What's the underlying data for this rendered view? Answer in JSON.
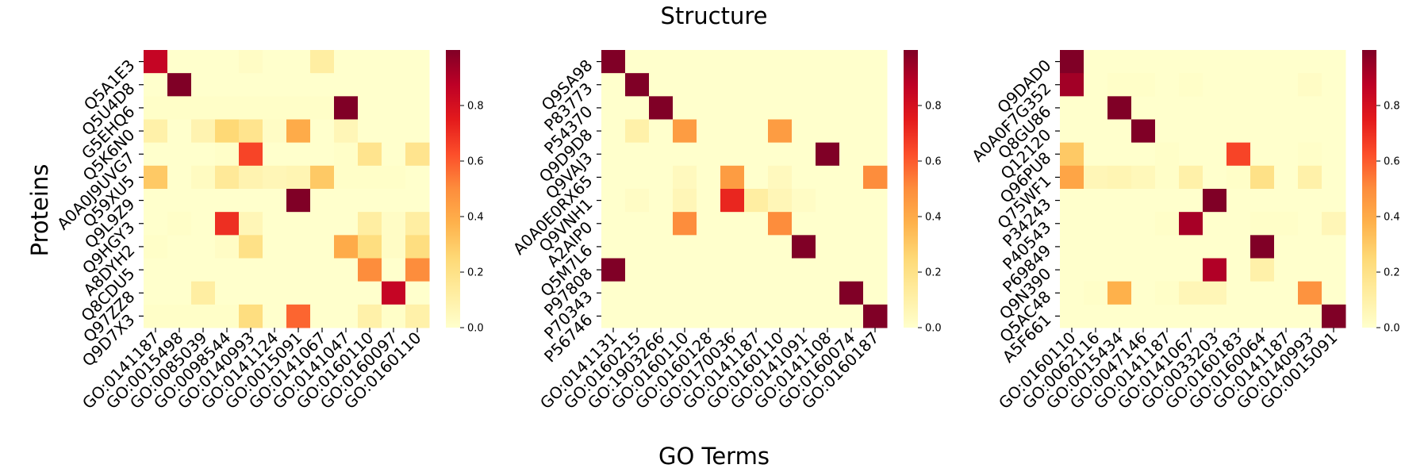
{
  "chart_data": {
    "type": "heatmap",
    "title": "Structure",
    "xlabel": "GO Terms",
    "ylabel": "Proteins",
    "colormap": "YlOrRd",
    "colormap_stops": [
      "#ffffcc",
      "#ffeda0",
      "#fed976",
      "#feb24c",
      "#fd8d3c",
      "#fc4e2a",
      "#e31a1c",
      "#bd0026",
      "#800026"
    ],
    "vlim": [
      0,
      1
    ],
    "colorbar_ticks": [
      0.0,
      0.2,
      0.4,
      0.6,
      0.8
    ],
    "colorbar_tick_labels": [
      "0.0",
      "0.2",
      "0.4",
      "0.6",
      "0.8"
    ],
    "panels": [
      {
        "rows": [
          "Q5A1E3",
          "Q5U4D8",
          "G5EHQ6",
          "Q5K6N0",
          "A0A0J9UVG7",
          "Q59XU5",
          "Q9L9Z9",
          "Q9HGY3",
          "A8DYH2",
          "Q8CDU5",
          "Q97ZZ8",
          "Q9D7X3"
        ],
        "cols": [
          "GO:0141187",
          "GO:0015498",
          "GO:0085039",
          "GO:0098544",
          "GO:0140993",
          "GO:0141124",
          "GO:0015091",
          "GO:0141067",
          "GO:0141047",
          "GO:0160110",
          "GO:0160097",
          "GO:0160110"
        ],
        "values": [
          [
            0.85,
            0,
            0,
            0,
            0.02,
            0,
            0,
            0.12,
            0,
            0,
            0,
            0
          ],
          [
            0,
            1.0,
            0,
            0,
            0,
            0,
            0,
            0,
            0,
            0,
            0,
            0
          ],
          [
            0.01,
            0.01,
            0.01,
            0.01,
            0.01,
            0.01,
            0.01,
            0.01,
            1.0,
            0,
            0,
            0
          ],
          [
            0.1,
            0,
            0.08,
            0.25,
            0.18,
            0.02,
            0.4,
            0,
            0.06,
            0,
            0,
            0
          ],
          [
            0,
            0,
            0,
            0.01,
            0.65,
            0,
            0,
            0,
            0.01,
            0.18,
            0,
            0.18
          ],
          [
            0.3,
            0,
            0.03,
            0.15,
            0.08,
            0.06,
            0.07,
            0.3,
            0.01,
            0.01,
            0.01,
            0
          ],
          [
            0,
            0,
            0,
            0,
            0,
            0,
            1.0,
            0,
            0,
            0,
            0,
            0
          ],
          [
            0,
            0.01,
            0,
            0.7,
            0.06,
            0,
            0,
            0,
            0,
            0.12,
            0.02,
            0.12
          ],
          [
            0.01,
            0,
            0,
            0.02,
            0.2,
            0,
            0,
            0,
            0.4,
            0.22,
            0.02,
            0.22
          ],
          [
            0,
            0,
            0,
            0,
            0,
            0,
            0,
            0,
            0,
            0.5,
            0,
            0.5
          ],
          [
            0,
            0,
            0.12,
            0,
            0,
            0,
            0,
            0,
            0,
            0,
            0.85,
            0
          ],
          [
            0.01,
            0.01,
            0.01,
            0.01,
            0.22,
            0,
            0.58,
            0,
            0,
            0.1,
            0.01,
            0.1
          ]
        ]
      },
      {
        "rows": [
          "Q9SA98",
          "P83773",
          "P54370",
          "Q9D9D8",
          "Q9VAJ3",
          "A0A0E0RX65",
          "Q9VNH1",
          "A2AIP0",
          "Q5M7L6",
          "P97808",
          "P70343",
          "P56746"
        ],
        "cols": [
          "GO:0141131",
          "GO:0160215",
          "GO:1903266",
          "GO:0160110",
          "GO:0160128",
          "GO:0170036",
          "GO:0141187",
          "GO:0160110",
          "GO:0141091",
          "GO:0141108",
          "GO:0160074",
          "GO:0160187"
        ],
        "values": [
          [
            1.0,
            0,
            0,
            0,
            0,
            0,
            0,
            0,
            0,
            0,
            0,
            0
          ],
          [
            0,
            1.0,
            0,
            0,
            0,
            0,
            0,
            0,
            0,
            0,
            0,
            0
          ],
          [
            0,
            0,
            1.0,
            0,
            0,
            0,
            0,
            0,
            0,
            0,
            0,
            0
          ],
          [
            0,
            0.1,
            0,
            0.45,
            0,
            0,
            0,
            0.45,
            0,
            0,
            0,
            0
          ],
          [
            0,
            0,
            0,
            0,
            0,
            0,
            0,
            0,
            0,
            1.0,
            0,
            0
          ],
          [
            0,
            0,
            0,
            0.04,
            0,
            0.45,
            0,
            0.04,
            0,
            0,
            0,
            0.5
          ],
          [
            0,
            0.02,
            0,
            0.06,
            0,
            0.72,
            0.12,
            0.06,
            0.02,
            0,
            0,
            0
          ],
          [
            0,
            0,
            0,
            0.5,
            0,
            0,
            0,
            0.5,
            0,
            0,
            0,
            0
          ],
          [
            0,
            0,
            0,
            0,
            0,
            0,
            0,
            0,
            1.0,
            0,
            0,
            0
          ],
          [
            1.0,
            0,
            0,
            0,
            0,
            0,
            0,
            0,
            0,
            0,
            0,
            0
          ],
          [
            0,
            0,
            0,
            0,
            0,
            0,
            0,
            0,
            0,
            0,
            1.0,
            0
          ],
          [
            0,
            0,
            0,
            0,
            0,
            0,
            0,
            0,
            0,
            0,
            0,
            1.0
          ]
        ]
      },
      {
        "rows": [
          "Q9DAD0",
          "A0A0F7G352",
          "Q8GU86",
          "Q12120",
          "Q96PU8",
          "Q75WF1",
          "P34243",
          "P40543",
          "P69849",
          "Q9N390",
          "Q5AC48",
          "A5F661"
        ],
        "cols": [
          "GO:0160110",
          "GO:0062116",
          "GO:0015434",
          "GO:0047146",
          "GO:0141187",
          "GO:0141067",
          "GO:0033203",
          "GO:0160183",
          "GO:0160064",
          "GO:0141187",
          "GO:0140993",
          "GO:0015091"
        ],
        "values": [
          [
            1.0,
            0,
            0,
            0,
            0,
            0,
            0,
            0,
            0,
            0,
            0,
            0
          ],
          [
            0.93,
            0,
            0.01,
            0.01,
            0,
            0.01,
            0,
            0,
            0,
            0,
            0.02,
            0
          ],
          [
            0,
            0,
            1.0,
            0,
            0,
            0,
            0,
            0,
            0,
            0,
            0,
            0
          ],
          [
            0,
            0,
            0,
            1.0,
            0,
            0,
            0,
            0,
            0,
            0,
            0,
            0
          ],
          [
            0.3,
            0,
            0,
            0,
            0.01,
            0,
            0,
            0.65,
            0,
            0,
            0.01,
            0
          ],
          [
            0.42,
            0.06,
            0.07,
            0.05,
            0.01,
            0.1,
            0,
            0.01,
            0.2,
            0,
            0.1,
            0
          ],
          [
            0,
            0,
            0,
            0,
            0,
            0,
            1.0,
            0,
            0,
            0,
            0,
            0
          ],
          [
            0,
            0,
            0,
            0,
            0.01,
            0.92,
            0,
            0,
            0.01,
            0.01,
            0,
            0.06
          ],
          [
            0,
            0,
            0,
            0,
            0,
            0,
            0,
            0,
            1.0,
            0,
            0,
            0
          ],
          [
            0,
            0,
            0,
            0,
            0,
            0,
            0.9,
            0,
            0.1,
            0,
            0,
            0
          ],
          [
            0,
            0.01,
            0.38,
            0,
            0.01,
            0.06,
            0.06,
            0,
            0,
            0,
            0.48,
            0
          ],
          [
            0,
            0,
            0,
            0,
            0,
            0,
            0,
            0,
            0,
            0,
            0,
            1.0
          ]
        ]
      }
    ]
  }
}
